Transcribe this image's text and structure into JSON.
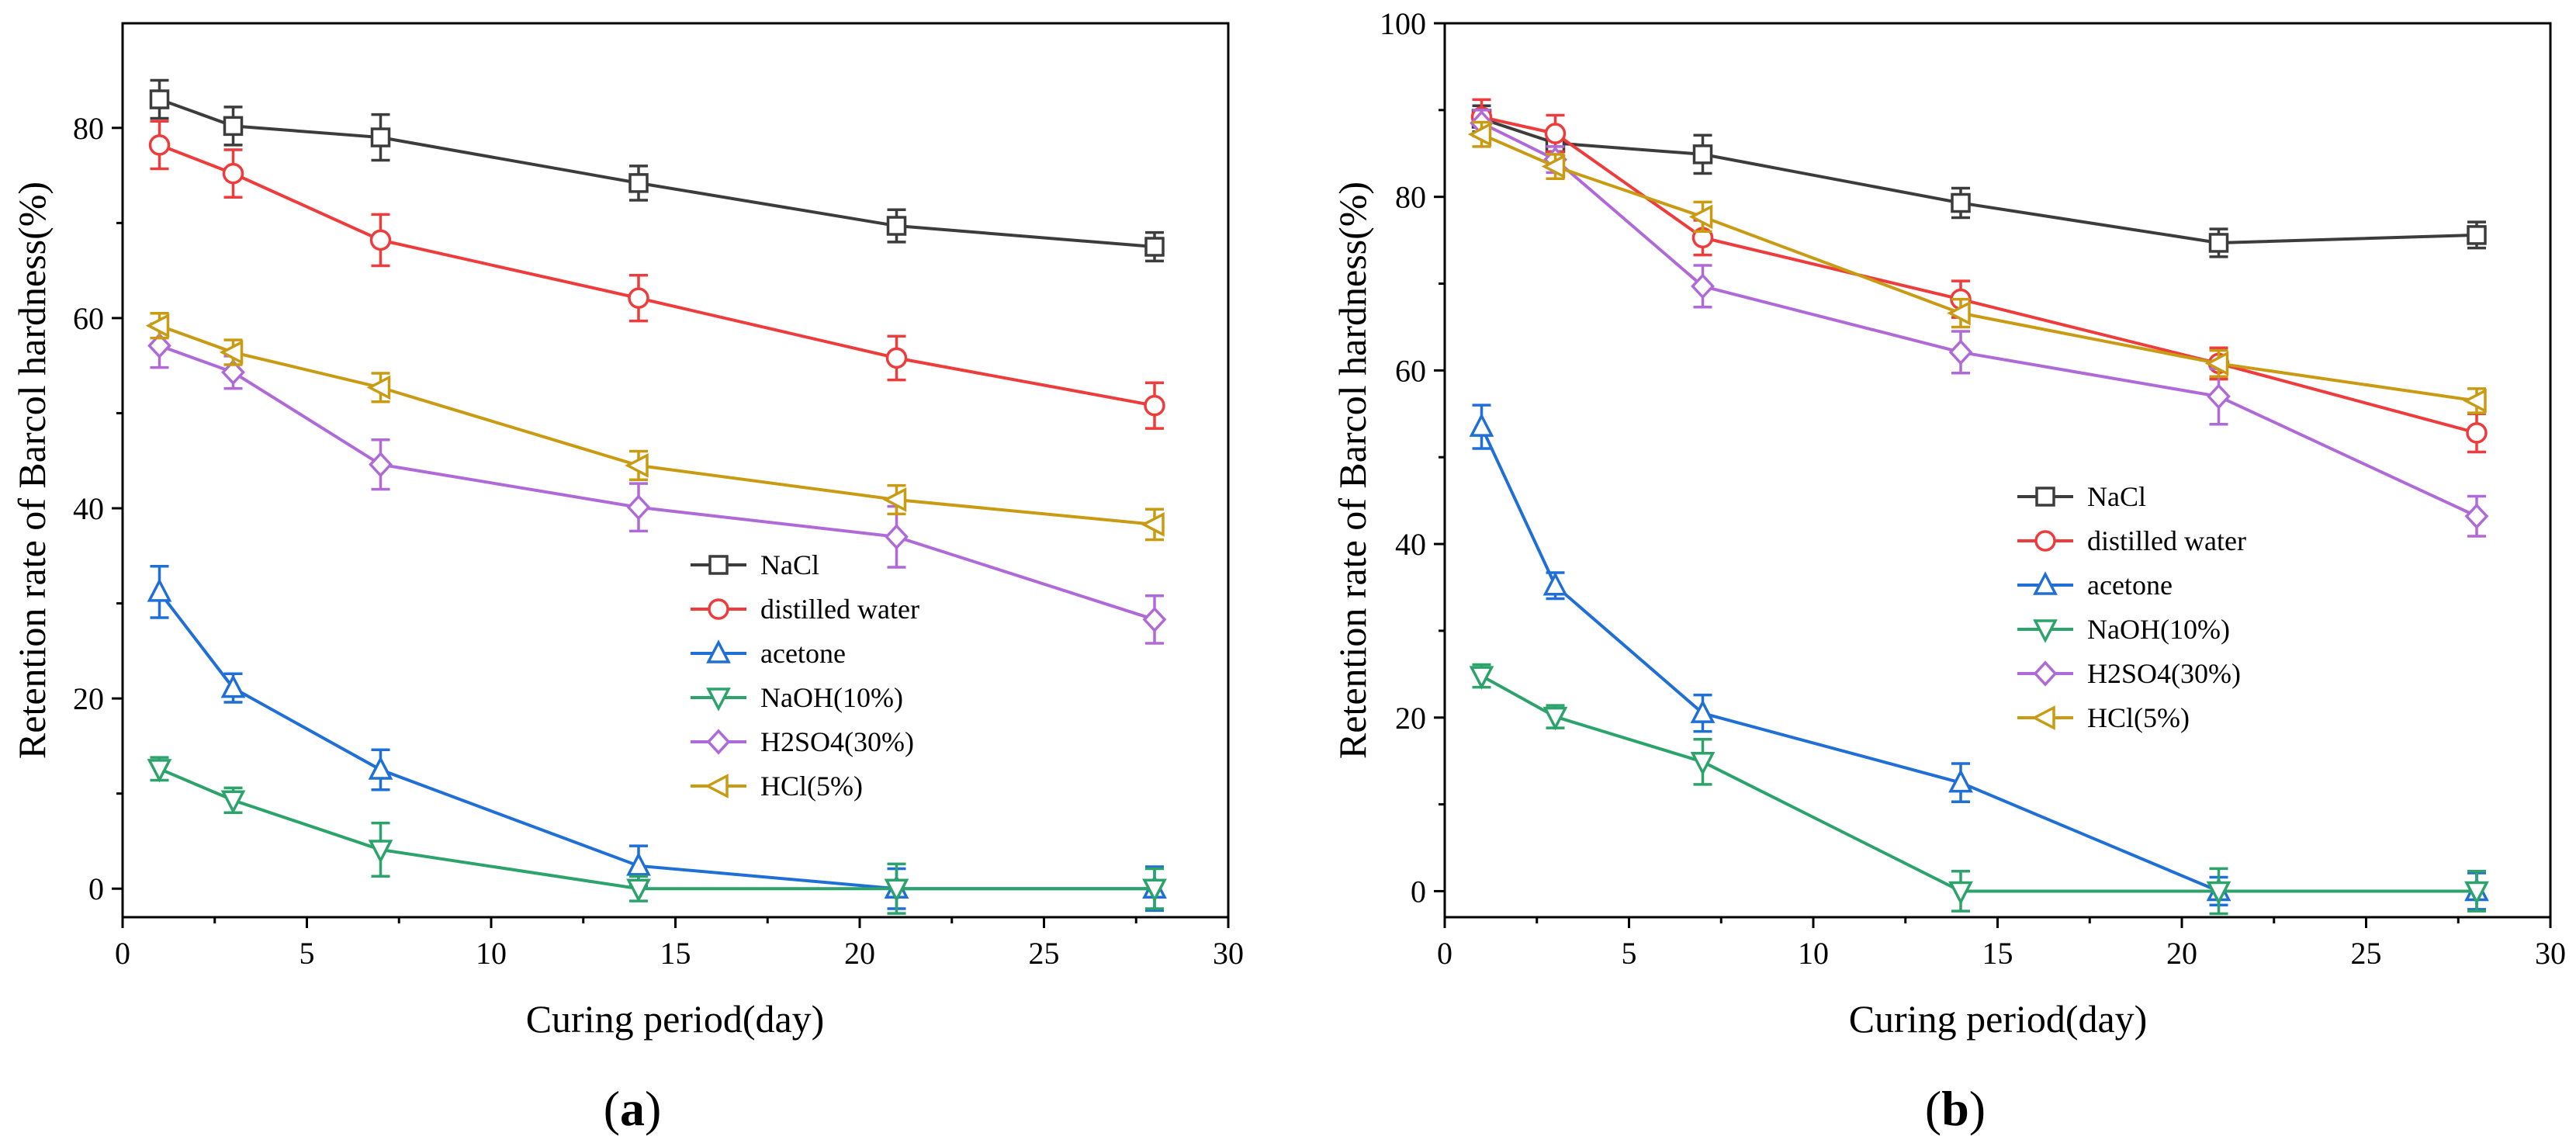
{
  "chart_data": [
    {
      "type": "line",
      "panel_label": "a",
      "xlabel": "Curing period(day)",
      "ylabel": "Retention rate of Barcol hardness(%)",
      "xlim": [
        0,
        30
      ],
      "ylim": [
        -3,
        91
      ],
      "xticks": [
        0,
        5,
        10,
        15,
        20,
        25,
        30
      ],
      "yticks": [
        0,
        20,
        40,
        60,
        80
      ],
      "legend_position": "center-right",
      "x": [
        1,
        3,
        7,
        14,
        21,
        28
      ],
      "series": [
        {
          "name": "NaCl",
          "color": "#3c3c3c",
          "marker": "square",
          "values": [
            83,
            80.2,
            79,
            74.2,
            69.7,
            67.5
          ],
          "errors": [
            2,
            2,
            2.4,
            1.8,
            1.7,
            1.5
          ]
        },
        {
          "name": "distilled water",
          "color": "#ee3b3b",
          "marker": "circle",
          "values": [
            78.2,
            75.2,
            68.2,
            62.1,
            55.8,
            50.8
          ],
          "errors": [
            2.5,
            2.5,
            2.7,
            2.4,
            2.3,
            2.4
          ]
        },
        {
          "name": "acetone",
          "color": "#1f6fd6",
          "marker": "triangle-up",
          "values": [
            31.2,
            21.1,
            12.5,
            2.4,
            0,
            0
          ],
          "errors": [
            2.7,
            1.5,
            2.1,
            2.1,
            2.1,
            2.3
          ]
        },
        {
          "name": "NaOH(10%)",
          "color": "#2ba36a",
          "marker": "triangle-down",
          "values": [
            12.6,
            9.3,
            4.1,
            0,
            0,
            0
          ],
          "errors": [
            1.2,
            1.3,
            2.8,
            1.3,
            2.6,
            2.1
          ]
        },
        {
          "name": "H2SO4(30%)",
          "color": "#b06ad8",
          "marker": "diamond",
          "values": [
            57.1,
            54.3,
            44.6,
            40.1,
            37,
            28.3
          ],
          "errors": [
            2.3,
            1.7,
            2.6,
            2.5,
            3.2,
            2.5
          ]
        },
        {
          "name": "HCl(5%)",
          "color": "#c89b12",
          "marker": "triangle-left",
          "values": [
            59.2,
            56.4,
            52.7,
            44.5,
            40.9,
            38.3
          ],
          "errors": [
            1.3,
            1.3,
            1.5,
            1.5,
            1.5,
            1.6
          ]
        }
      ]
    },
    {
      "type": "line",
      "panel_label": "b",
      "xlabel": "Curing period(day)",
      "ylabel": "Retention rate of Barcol hardness(%)",
      "xlim": [
        0,
        30
      ],
      "ylim": [
        -3,
        100
      ],
      "xticks": [
        0,
        5,
        10,
        15,
        20,
        25,
        30
      ],
      "yticks": [
        0,
        20,
        40,
        60,
        80,
        100
      ],
      "legend_position": "center",
      "x": [
        1,
        3,
        7,
        14,
        21,
        28
      ],
      "series": [
        {
          "name": "NaCl",
          "color": "#3c3c3c",
          "marker": "square",
          "values": [
            89,
            86.2,
            84.9,
            79.3,
            74.7,
            75.6
          ],
          "errors": [
            1.5,
            1.5,
            2.2,
            1.7,
            1.6,
            1.5
          ]
        },
        {
          "name": "distilled water",
          "color": "#ee3b3b",
          "marker": "circle",
          "values": [
            89.2,
            87.3,
            75.3,
            68.2,
            60.8,
            52.8
          ],
          "errors": [
            2,
            2.1,
            2,
            2.1,
            1.8,
            2.2
          ]
        },
        {
          "name": "acetone",
          "color": "#1f6fd6",
          "marker": "triangle-up",
          "values": [
            53.5,
            35.2,
            20.5,
            12.5,
            0,
            0
          ],
          "errors": [
            2.5,
            1.5,
            2.1,
            2.2,
            1.6,
            2.1
          ]
        },
        {
          "name": "NaOH(10%)",
          "color": "#2ba36a",
          "marker": "triangle-down",
          "values": [
            24.8,
            20.1,
            14.9,
            0,
            0,
            0
          ],
          "errors": [
            1.3,
            1.3,
            2.6,
            2.3,
            2.6,
            2.3
          ]
        },
        {
          "name": "H2SO4(30%)",
          "color": "#b06ad8",
          "marker": "diamond",
          "values": [
            88.5,
            84.3,
            69.7,
            62.1,
            57,
            43.2
          ],
          "errors": [
            1.5,
            1.5,
            2.4,
            2.4,
            3.2,
            2.3
          ]
        },
        {
          "name": "HCl(5%)",
          "color": "#c89b12",
          "marker": "triangle-left",
          "values": [
            87.2,
            83.5,
            77.7,
            66.6,
            60.8,
            56.5
          ],
          "errors": [
            1.4,
            1.4,
            1.7,
            1.6,
            1.5,
            1.4
          ]
        }
      ]
    }
  ]
}
